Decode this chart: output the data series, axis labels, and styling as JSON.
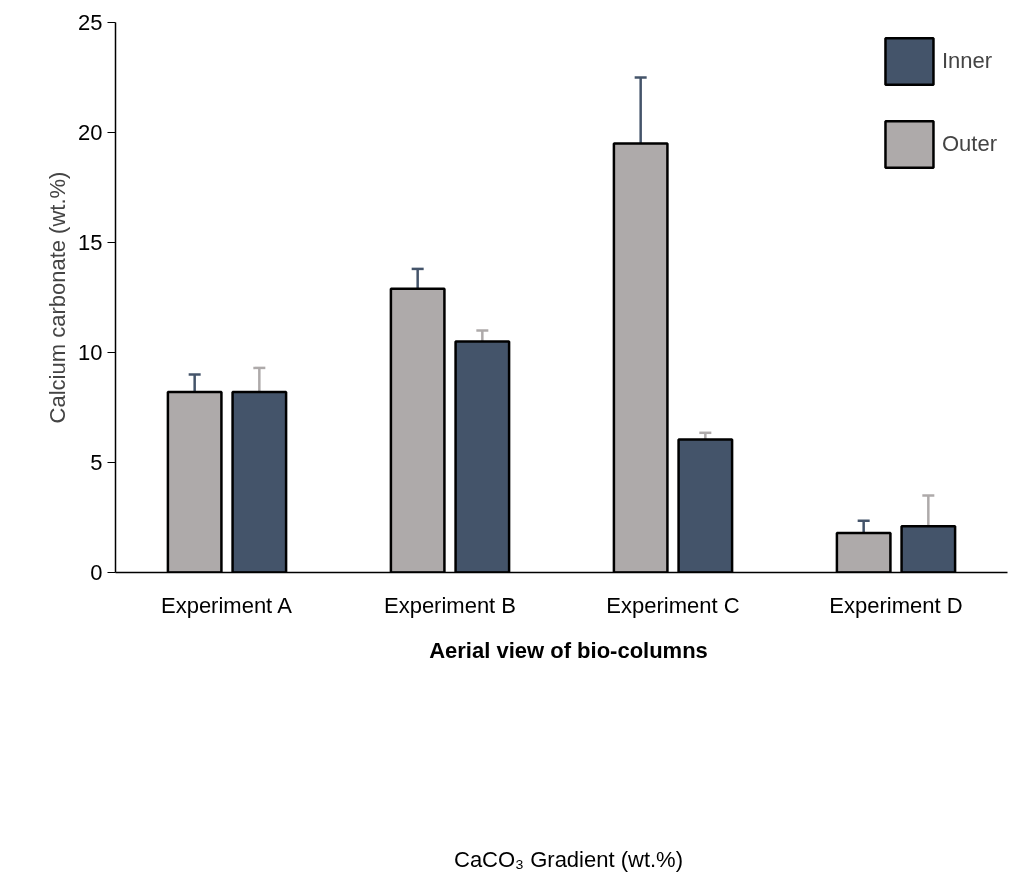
{
  "chart_data": {
    "type": "bar",
    "ylabel": "Calcium carbonate (wt.%)",
    "categories": [
      "Experiment A",
      "Experiment B",
      "Experiment C",
      "Experiment D"
    ],
    "series": [
      {
        "name": "Outer",
        "color": "#aeaaaa",
        "values": [
          8.2,
          12.9,
          19.5,
          1.8
        ],
        "errors": [
          0.8,
          0.9,
          3.0,
          0.55
        ]
      },
      {
        "name": "Inner",
        "color": "#44546a",
        "values": [
          8.2,
          10.5,
          6.05,
          2.1
        ],
        "errors": [
          1.1,
          0.5,
          0.3,
          1.4
        ]
      }
    ],
    "ylim": [
      0,
      25
    ],
    "yticks": [
      0,
      5,
      10,
      15,
      20,
      25
    ],
    "grid": false,
    "legend": "top right",
    "annotations": [
      "Aerial view of bio-columns",
      "CaCO₃ Gradient (wt.%)"
    ]
  }
}
